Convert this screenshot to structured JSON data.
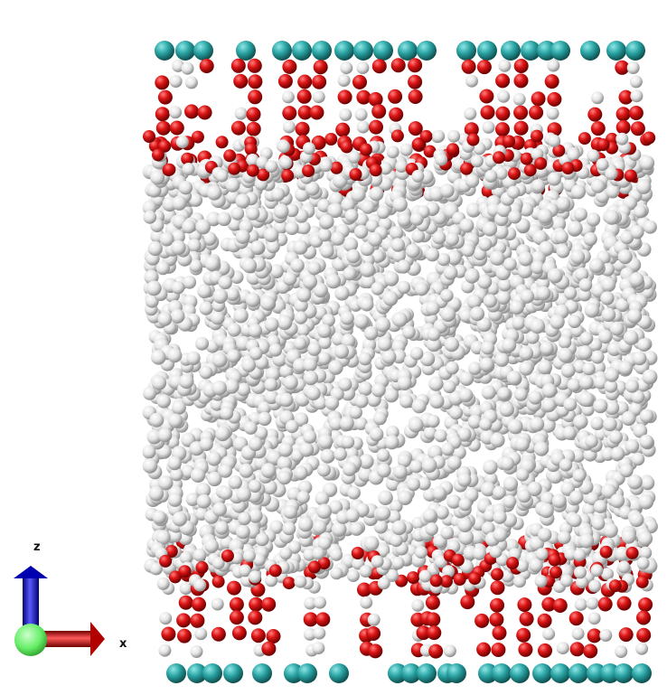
{
  "scene": {
    "background": "#ffffff",
    "atom_colors": {
      "surface_atom": "#2aa3a3",
      "red_atom": "#d01010",
      "white_atom": "#e9e9e9"
    }
  },
  "axes_indicator": {
    "z_label": "z",
    "x_label": "x",
    "z_color": "#1010d8",
    "x_color": "#d01010",
    "origin_color": "#66ee66"
  }
}
